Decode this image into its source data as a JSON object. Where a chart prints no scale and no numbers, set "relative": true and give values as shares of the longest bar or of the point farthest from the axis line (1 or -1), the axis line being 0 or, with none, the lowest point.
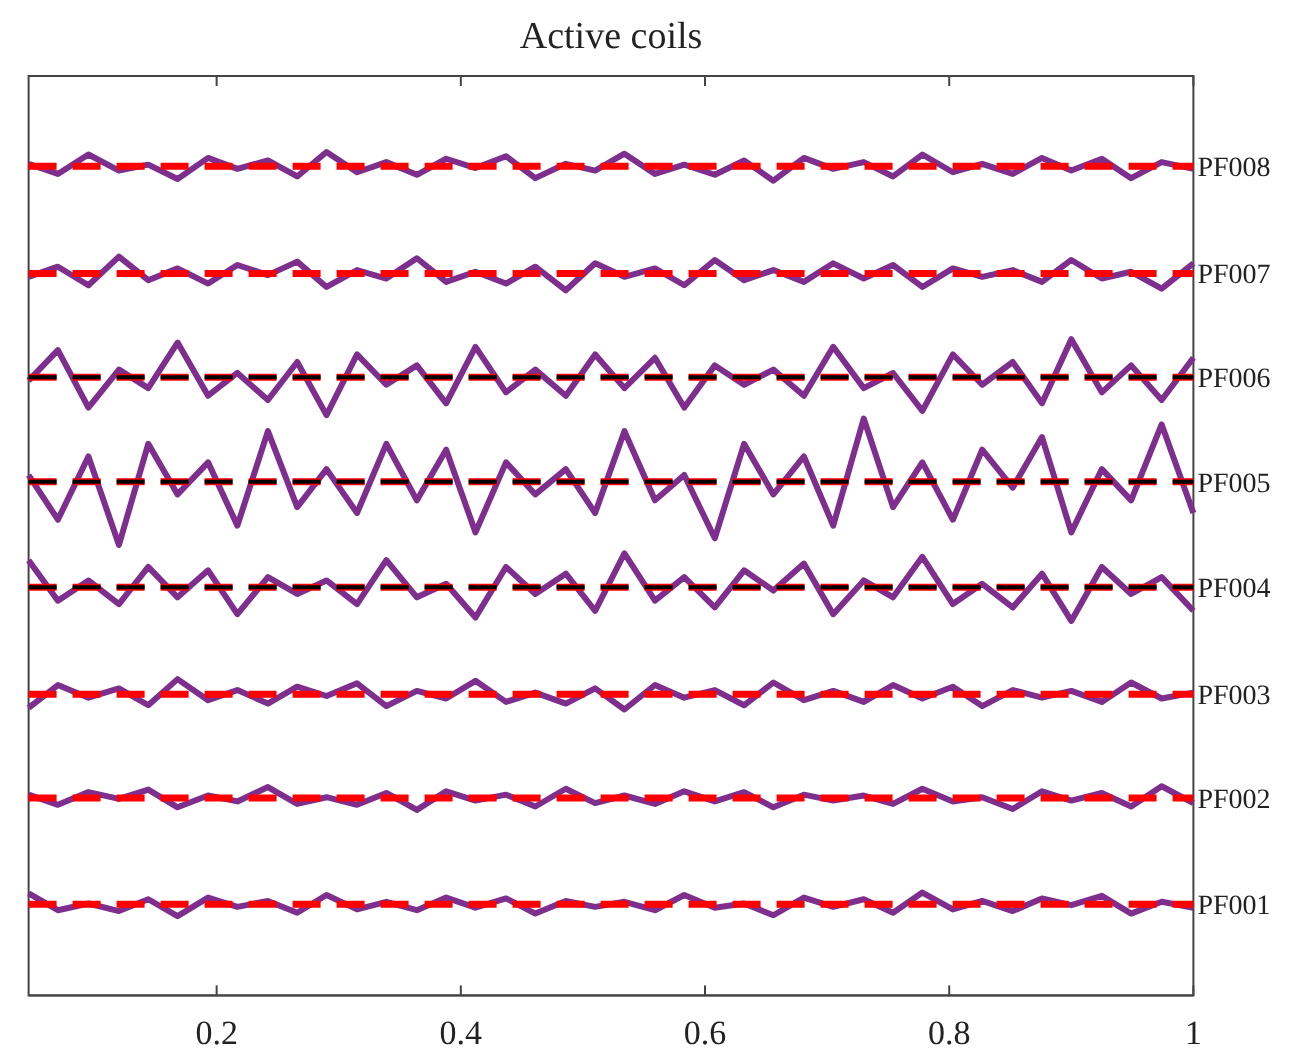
{
  "chart_data": {
    "type": "line",
    "title": "Active coils",
    "relative": true,
    "xlim": [
      0.046,
      1
    ],
    "xticks": [
      0.2,
      0.4,
      0.6,
      0.8,
      1
    ],
    "x": [
      0.046,
      0.07,
      0.095,
      0.12,
      0.144,
      0.168,
      0.193,
      0.217,
      0.242,
      0.266,
      0.29,
      0.315,
      0.339,
      0.364,
      0.388,
      0.412,
      0.437,
      0.461,
      0.486,
      0.51,
      0.534,
      0.559,
      0.583,
      0.608,
      0.632,
      0.656,
      0.681,
      0.705,
      0.73,
      0.754,
      0.778,
      0.803,
      0.827,
      0.852,
      0.876,
      0.9,
      0.925,
      0.949,
      0.974,
      1.0
    ],
    "series": [
      {
        "name": "PF008",
        "color": "#7e2f8e",
        "line_style": "solid",
        "values": [
          0.986,
          0.974,
          0.997,
          0.978,
          0.985,
          0.968,
          0.993,
          0.98,
          0.99,
          0.971,
          1.0,
          0.976,
          0.988,
          0.973,
          0.992,
          0.981,
          0.995,
          0.969,
          0.986,
          0.978,
          0.998,
          0.974,
          0.985,
          0.973,
          0.99,
          0.966,
          0.993,
          0.98,
          0.988,
          0.971,
          0.997,
          0.976,
          0.986,
          0.974,
          0.993,
          0.978,
          0.992,
          0.969,
          0.988,
          0.98
        ]
      },
      {
        "name": "PF007",
        "color": "#7e2f8e",
        "line_style": "solid",
        "values": [
          0.852,
          0.864,
          0.842,
          0.876,
          0.848,
          0.862,
          0.844,
          0.866,
          0.854,
          0.87,
          0.84,
          0.86,
          0.85,
          0.874,
          0.846,
          0.858,
          0.844,
          0.864,
          0.836,
          0.868,
          0.852,
          0.862,
          0.842,
          0.872,
          0.848,
          0.86,
          0.846,
          0.868,
          0.85,
          0.866,
          0.84,
          0.862,
          0.852,
          0.86,
          0.846,
          0.872,
          0.85,
          0.858,
          0.838,
          0.868
        ]
      },
      {
        "name": "PF006",
        "color": "#7e2f8e",
        "line_style": "solid",
        "values": [
          0.729,
          0.765,
          0.697,
          0.742,
          0.72,
          0.774,
          0.711,
          0.738,
          0.706,
          0.751,
          0.688,
          0.76,
          0.724,
          0.747,
          0.702,
          0.769,
          0.715,
          0.742,
          0.711,
          0.76,
          0.72,
          0.756,
          0.697,
          0.747,
          0.724,
          0.742,
          0.711,
          0.769,
          0.72,
          0.738,
          0.693,
          0.76,
          0.724,
          0.751,
          0.702,
          0.778,
          0.715,
          0.747,
          0.706,
          0.756
        ]
      },
      {
        "name": "PF005",
        "color": "#7e2f8e",
        "line_style": "solid",
        "values": [
          0.617,
          0.564,
          0.639,
          0.534,
          0.654,
          0.594,
          0.632,
          0.557,
          0.669,
          0.579,
          0.624,
          0.572,
          0.654,
          0.587,
          0.647,
          0.549,
          0.632,
          0.594,
          0.624,
          0.572,
          0.669,
          0.587,
          0.617,
          0.542,
          0.654,
          0.594,
          0.639,
          0.557,
          0.684,
          0.579,
          0.632,
          0.564,
          0.647,
          0.602,
          0.662,
          0.549,
          0.624,
          0.587,
          0.677,
          0.572
        ]
      },
      {
        "name": "PF004",
        "color": "#7e2f8e",
        "line_style": "solid",
        "values": [
          0.516,
          0.468,
          0.492,
          0.464,
          0.508,
          0.472,
          0.504,
          0.452,
          0.496,
          0.476,
          0.492,
          0.464,
          0.516,
          0.472,
          0.488,
          0.448,
          0.508,
          0.476,
          0.5,
          0.456,
          0.524,
          0.468,
          0.496,
          0.46,
          0.504,
          0.48,
          0.512,
          0.452,
          0.492,
          0.472,
          0.52,
          0.464,
          0.488,
          0.46,
          0.5,
          0.444,
          0.508,
          0.476,
          0.496,
          0.456
        ]
      },
      {
        "name": "PF003",
        "color": "#7e2f8e",
        "line_style": "solid",
        "values": [
          0.341,
          0.368,
          0.353,
          0.364,
          0.344,
          0.375,
          0.35,
          0.362,
          0.346,
          0.366,
          0.355,
          0.37,
          0.343,
          0.361,
          0.352,
          0.373,
          0.348,
          0.359,
          0.346,
          0.364,
          0.339,
          0.368,
          0.353,
          0.362,
          0.344,
          0.371,
          0.35,
          0.361,
          0.348,
          0.368,
          0.352,
          0.366,
          0.343,
          0.362,
          0.353,
          0.361,
          0.348,
          0.371,
          0.352,
          0.359
        ]
      },
      {
        "name": "PF002",
        "color": "#7e2f8e",
        "line_style": "solid",
        "values": [
          0.238,
          0.226,
          0.241,
          0.233,
          0.244,
          0.223,
          0.237,
          0.23,
          0.247,
          0.227,
          0.235,
          0.226,
          0.24,
          0.22,
          0.242,
          0.231,
          0.238,
          0.224,
          0.245,
          0.228,
          0.237,
          0.227,
          0.242,
          0.23,
          0.241,
          0.223,
          0.238,
          0.231,
          0.237,
          0.227,
          0.245,
          0.23,
          0.235,
          0.221,
          0.242,
          0.231,
          0.24,
          0.224,
          0.248,
          0.228
        ]
      },
      {
        "name": "PF001",
        "color": "#7e2f8e",
        "line_style": "solid",
        "values": [
          0.121,
          0.101,
          0.109,
          0.1,
          0.114,
          0.094,
          0.116,
          0.105,
          0.112,
          0.098,
          0.119,
          0.102,
          0.111,
          0.101,
          0.116,
          0.104,
          0.115,
          0.097,
          0.112,
          0.105,
          0.111,
          0.101,
          0.119,
          0.104,
          0.109,
          0.095,
          0.116,
          0.105,
          0.114,
          0.098,
          0.122,
          0.102,
          0.112,
          0.1,
          0.115,
          0.107,
          0.118,
          0.097,
          0.111,
          0.104
        ]
      }
    ],
    "ref_lines": [
      {
        "axis": "y",
        "value": 0.983,
        "color": "#ff0000",
        "line_style": "dashed"
      },
      {
        "axis": "y",
        "value": 0.856,
        "color": "#ff0000",
        "line_style": "dashed"
      },
      {
        "axis": "y",
        "value": 0.733,
        "color": "#ff0000",
        "line_style": "dashed"
      },
      {
        "axis": "y",
        "value": 0.609,
        "color": "#ff0000",
        "line_style": "dashed"
      },
      {
        "axis": "y",
        "value": 0.484,
        "color": "#ff0000",
        "line_style": "dashed"
      },
      {
        "axis": "y",
        "value": 0.357,
        "color": "#ff0000",
        "line_style": "dashed"
      },
      {
        "axis": "y",
        "value": 0.234,
        "color": "#ff0000",
        "line_style": "dashed"
      },
      {
        "axis": "y",
        "value": 0.108,
        "color": "#ff0000",
        "line_style": "dashed"
      },
      {
        "axis": "y",
        "value": 0.733,
        "color": "#000000",
        "line_style": "dashed"
      },
      {
        "axis": "y",
        "value": 0.609,
        "color": "#000000",
        "line_style": "dashed"
      },
      {
        "axis": "y",
        "value": 0.484,
        "color": "#000000",
        "line_style": "dashed"
      }
    ]
  }
}
